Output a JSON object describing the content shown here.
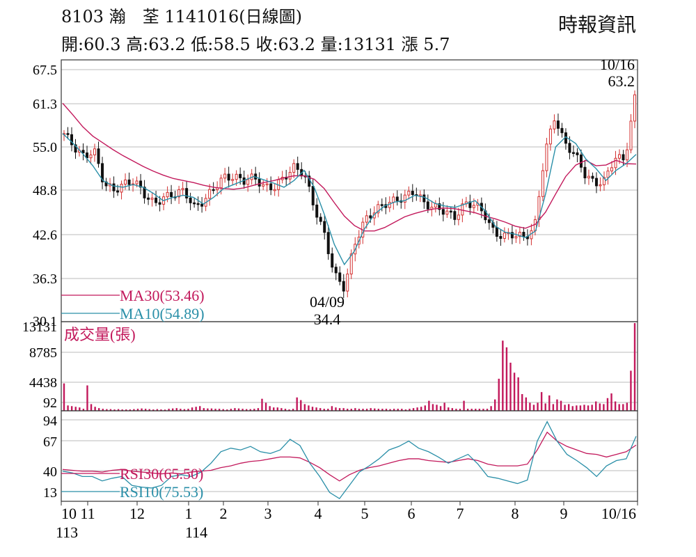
{
  "header": {
    "title": "8103  瀚　荃 1141016(日線圖)",
    "ohlc": "開:60.3 高:63.2 低:58.5 收:63.2 量:13131 漲 5.7",
    "source": "時報資訊"
  },
  "chart_data": [
    {
      "type": "candlestick",
      "panel": "price",
      "yticks": [
        "67.5",
        "61.3",
        "55.0",
        "48.8",
        "42.6",
        "36.3",
        "30.1"
      ],
      "ylim": [
        30.1,
        67.5
      ],
      "x_months": [
        "10",
        "11",
        "12",
        "1",
        "2",
        "3",
        "4",
        "5",
        "6",
        "7",
        "8",
        "9",
        "10/16"
      ],
      "x_years": [
        "113",
        "114"
      ],
      "annotations": [
        {
          "date": "10/16",
          "value": "63.2",
          "label_date": "10/16",
          "label_value": "63.2"
        },
        {
          "date": "04/09",
          "value": "34.4",
          "label_date": "04/09",
          "label_value": "34.4"
        }
      ],
      "legend": [
        {
          "label": "MA30(53.46)",
          "color": "#c2185b"
        },
        {
          "label": "MA10(54.89)",
          "color": "#2a8fa8"
        }
      ],
      "ma30_approx": [
        62.5,
        60.8,
        59.0,
        57.6,
        56.6,
        55.6,
        54.7,
        53.9,
        53.1,
        52.4,
        51.8,
        51.3,
        51.0,
        50.7,
        50.3,
        50.0,
        49.8,
        49.7,
        49.9,
        50.3,
        50.7,
        51.0,
        51.4,
        51.7,
        51.7,
        51.2,
        49.8,
        47.7,
        45.7,
        44.3,
        43.5,
        43.5,
        44.0,
        44.8,
        45.6,
        46.1,
        46.5,
        46.8,
        46.9,
        46.8,
        46.5,
        46.2,
        45.7,
        45.3,
        44.8,
        44.2,
        43.9,
        44.5,
        46.3,
        49.0,
        51.6,
        53.3,
        54.0,
        53.2,
        53.3,
        54.0,
        53.5,
        53.46
      ],
      "ma10_approx": [
        58.0,
        56.6,
        55.0,
        53.2,
        51.0,
        50.2,
        50.0,
        50.4,
        50.0,
        49.1,
        48.0,
        48.5,
        48.8,
        48.5,
        47.5,
        48.5,
        49.8,
        50.4,
        51.0,
        51.6,
        51.1,
        50.6,
        50.0,
        51.0,
        52.5,
        50.0,
        46.0,
        41.5,
        38.5,
        40.5,
        43.8,
        46.0,
        47.2,
        47.8,
        48.0,
        48.8,
        48.5,
        47.6,
        47.2,
        47.0,
        47.5,
        48.0,
        46.5,
        44.2,
        43.3,
        43.0,
        42.5,
        43.5,
        49.0,
        56.0,
        57.5,
        56.5,
        54.2,
        52.8,
        51.0,
        52.5,
        53.5,
        54.89
      ],
      "close_approx": [
        58.0,
        56.0,
        54.5,
        55.5,
        50.5,
        49.5,
        50.5,
        51.0,
        49.0,
        47.5,
        48.5,
        49.0,
        49.5,
        47.0,
        48.0,
        50.0,
        51.5,
        51.5,
        51.0,
        51.5,
        50.0,
        50.0,
        51.5,
        53.0,
        52.0,
        47.0,
        43.0,
        37.0,
        35.0,
        41.5,
        45.0,
        46.5,
        47.5,
        48.0,
        48.5,
        49.5,
        47.5,
        47.0,
        46.5,
        45.5,
        47.5,
        47.5,
        46.0,
        43.0,
        42.8,
        43.0,
        42.5,
        44.0,
        55.0,
        60.5,
        56.5,
        55.0,
        52.0,
        50.5,
        51.0,
        54.5,
        54.0,
        63.2
      ]
    },
    {
      "type": "bar",
      "panel": "volume",
      "title": "成交量(張)",
      "yticks": [
        "13131",
        "8785",
        "4438",
        "92"
      ],
      "ylim": [
        0,
        13131
      ],
      "color": "#c2185b",
      "values_approx": [
        4100,
        800,
        700,
        600,
        500,
        300,
        3800,
        1000,
        600,
        400,
        300,
        250,
        250,
        200,
        250,
        200,
        200,
        200,
        250,
        300,
        350,
        300,
        250,
        200,
        250,
        200,
        180,
        300,
        350,
        400,
        300,
        250,
        300,
        500,
        600,
        700,
        400,
        350,
        350,
        300,
        300,
        250,
        200,
        300,
        400,
        350,
        300,
        250,
        250,
        300,
        400,
        1800,
        1200,
        700,
        500,
        500,
        400,
        300,
        200,
        300,
        2000,
        1600,
        1000,
        800,
        600,
        500,
        400,
        300,
        300,
        700,
        500,
        400,
        400,
        300,
        300,
        400,
        300,
        300,
        300,
        400,
        350,
        300,
        300,
        300,
        250,
        300,
        300,
        300,
        200,
        300,
        400,
        500,
        600,
        800,
        1500,
        1000,
        900,
        700,
        1200,
        500,
        400,
        300,
        300,
        1500,
        300,
        300,
        300,
        300,
        300,
        300,
        700,
        1700,
        4800,
        10500,
        9500,
        7200,
        5700,
        5000,
        2500,
        2000,
        1200,
        900,
        1200,
        2800,
        1100,
        2300,
        1000,
        1700,
        1500,
        900,
        1000,
        700,
        800,
        800,
        900,
        800,
        900,
        1400,
        1100,
        1000,
        1900,
        2600,
        1400,
        1000,
        1000,
        1200,
        6000,
        13131
      ]
    },
    {
      "type": "line",
      "panel": "rsi",
      "yticks": [
        "94",
        "67",
        "40",
        "13"
      ],
      "ylim": [
        0,
        100
      ],
      "series": [
        {
          "name": "RSI30(65.50)",
          "color": "#c2185b",
          "values_approx": [
            38,
            37,
            36,
            36,
            35,
            37,
            38,
            36,
            35,
            34,
            33,
            34,
            33,
            35,
            36,
            37,
            40,
            42,
            45,
            47,
            48,
            50,
            52,
            52,
            51,
            46,
            40,
            32,
            25,
            32,
            37,
            40,
            42,
            45,
            48,
            50,
            50,
            48,
            47,
            46,
            48,
            50,
            48,
            44,
            42,
            42,
            42,
            44,
            60,
            80,
            70,
            64,
            60,
            56,
            55,
            52,
            55,
            58,
            65.5
          ]
        },
        {
          "name": "RSI10(75.53)",
          "color": "#2a8fa8",
          "values_approx": [
            36,
            34,
            30,
            30,
            25,
            28,
            30,
            20,
            18,
            17,
            20,
            30,
            32,
            30,
            35,
            45,
            58,
            62,
            60,
            64,
            58,
            56,
            60,
            72,
            65,
            45,
            30,
            12,
            5,
            20,
            35,
            42,
            50,
            60,
            64,
            70,
            62,
            58,
            52,
            45,
            50,
            55,
            44,
            30,
            28,
            25,
            22,
            26,
            70,
            92,
            70,
            55,
            48,
            40,
            30,
            42,
            48,
            50,
            75.5
          ]
        }
      ]
    }
  ]
}
